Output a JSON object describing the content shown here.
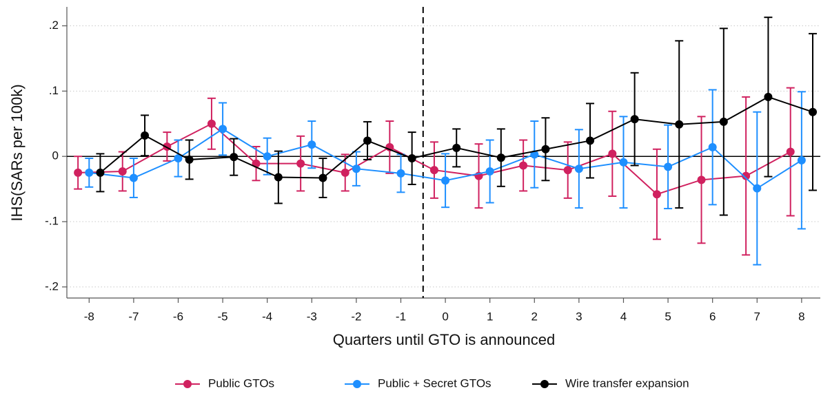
{
  "chart_data": {
    "type": "line",
    "xlabel": "Quarters until GTO is announced",
    "ylabel": "IHS(SARs per 100k)",
    "xlim": [
      -8.5,
      8.42
    ],
    "ylim": [
      -0.217,
      0.229
    ],
    "xticks": [
      -8,
      -7,
      -6,
      -5,
      -4,
      -3,
      -2,
      -1,
      0,
      1,
      2,
      3,
      4,
      5,
      6,
      7,
      8
    ],
    "yticks": [
      {
        "value": -0.2,
        "label": "-.2"
      },
      {
        "value": -0.1,
        "label": "-.1"
      },
      0,
      {
        "value": 0.1,
        "label": ".1"
      },
      {
        "value": 0.2,
        "label": ".2"
      }
    ],
    "grid": true,
    "reference_lines": {
      "x": -0.5,
      "y": 0
    },
    "legend": "bottom",
    "series": [
      {
        "name": "Public GTOs",
        "color": "#d0215f",
        "x": [
          -8.25,
          -7.25,
          -6.25,
          -5.25,
          -4.25,
          -3.25,
          -2.25,
          -1.25,
          -0.25,
          0.75,
          1.75,
          2.75,
          3.75,
          4.75,
          5.75,
          6.75,
          7.75
        ],
        "values": [
          -0.025,
          -0.023,
          0.015,
          0.05,
          -0.011,
          -0.011,
          -0.025,
          0.014,
          -0.021,
          -0.03,
          -0.014,
          -0.021,
          0.004,
          -0.058,
          -0.036,
          -0.03,
          0.007
        ],
        "errors": [
          0.025,
          0.03,
          0.022,
          0.039,
          0.026,
          0.042,
          0.028,
          0.04,
          0.043,
          0.049,
          0.039,
          0.043,
          0.065,
          0.069,
          0.097,
          0.121,
          0.098
        ]
      },
      {
        "name": "Public + Secret GTOs",
        "color": "#1e8fff",
        "x": [
          -8,
          -7,
          -6,
          -5,
          -4,
          -3,
          -2,
          -1,
          0,
          1,
          2,
          3,
          4,
          5,
          6,
          7,
          8
        ],
        "values": [
          -0.025,
          -0.033,
          -0.003,
          0.042,
          0.0,
          0.018,
          -0.019,
          -0.026,
          -0.037,
          -0.023,
          0.003,
          -0.019,
          -0.009,
          -0.016,
          0.014,
          -0.049,
          -0.006
        ],
        "errors": [
          0.022,
          0.03,
          0.028,
          0.04,
          0.028,
          0.036,
          0.026,
          0.029,
          0.041,
          0.048,
          0.051,
          0.06,
          0.07,
          0.064,
          0.088,
          0.117,
          0.105
        ]
      },
      {
        "name": "Wire transfer expansion",
        "color": "#000000",
        "x": [
          -7.75,
          -6.75,
          -5.75,
          -4.75,
          -3.75,
          -2.75,
          -1.75,
          -0.75,
          0.25,
          1.25,
          2.25,
          3.25,
          4.25,
          5.25,
          6.25,
          7.25,
          8.25
        ],
        "values": [
          -0.025,
          0.032,
          -0.005,
          -0.001,
          -0.032,
          -0.033,
          0.024,
          -0.003,
          0.013,
          -0.002,
          0.011,
          0.024,
          0.057,
          0.049,
          0.053,
          0.091,
          0.068
        ],
        "errors": [
          0.029,
          0.031,
          0.03,
          0.028,
          0.04,
          0.03,
          0.029,
          0.04,
          0.029,
          0.044,
          0.048,
          0.057,
          0.071,
          0.128,
          0.143,
          0.122,
          0.12
        ]
      }
    ]
  }
}
